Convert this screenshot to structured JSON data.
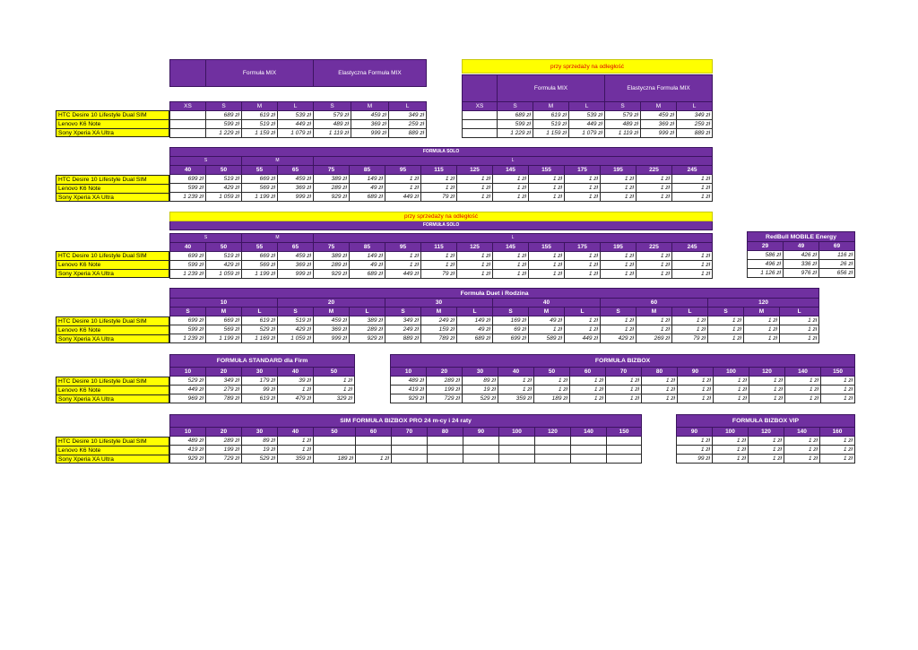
{
  "products": [
    "HTC Desire 10 Lifestyle Dual SIM",
    "Lenovo K6 Note",
    "Sony Xperia XA Ultra"
  ],
  "remote_label": "przy sprzedaży na odległość",
  "mix_block": {
    "group1": "Formuła MIX",
    "group2": "Elastyczna Formuła MIX",
    "sizes": [
      "XS",
      "S",
      "M",
      "L",
      "S",
      "M",
      "L"
    ],
    "rows": [
      [
        "",
        "689 zł",
        "619 zł",
        "539 zł",
        "579 zł",
        "459 zł",
        "349 zł"
      ],
      [
        "",
        "599 zł",
        "519 zł",
        "449 zł",
        "489 zł",
        "369 zł",
        "259 zł"
      ],
      [
        "",
        "1 229 zł",
        "1 159 zł",
        "1 079 zł",
        "1 119 zł",
        "999 zł",
        "889 zł"
      ]
    ]
  },
  "solo_block": {
    "title": "FORMUŁA SOLO",
    "groups": [
      "S",
      "M",
      "L"
    ],
    "cols": [
      "40",
      "50",
      "55",
      "65",
      "75",
      "85",
      "95",
      "115",
      "125",
      "145",
      "155",
      "175",
      "195",
      "225",
      "245"
    ],
    "rows": [
      [
        "699 zł",
        "519 zł",
        "669 zł",
        "459 zł",
        "389 zł",
        "149 zł",
        "1 zł",
        "1 zł",
        "1 zł",
        "1 zł",
        "1 zł",
        "1 zł",
        "1 zł",
        "1 zł",
        "1 zł"
      ],
      [
        "599 zł",
        "429 zł",
        "569 zł",
        "369 zł",
        "289 zł",
        "49 zł",
        "1 zł",
        "1 zł",
        "1 zł",
        "1 zł",
        "1 zł",
        "1 zł",
        "1 zł",
        "1 zł",
        "1 zł"
      ],
      [
        "1 239 zł",
        "1 059 zł",
        "1 199 zł",
        "999 zł",
        "929 zł",
        "689 zł",
        "449 zł",
        "79 zł",
        "1 zł",
        "1 zł",
        "1 zł",
        "1 zł",
        "1 zł",
        "1 zł",
        "1 zł"
      ]
    ]
  },
  "redbull_block": {
    "title": "RedBull MOBILE Energy",
    "cols": [
      "29",
      "49",
      "69"
    ],
    "rows": [
      [
        "586 zł",
        "426 zł",
        "116 zł"
      ],
      [
        "496 zł",
        "336 zł",
        "26 zł"
      ],
      [
        "1 126 zł",
        "976 zł",
        "656 zł"
      ]
    ]
  },
  "duet_block": {
    "title": "Formuła Duet i Rodzina",
    "tiers": [
      "10",
      "20",
      "30",
      "40",
      "60",
      "120"
    ],
    "sizes": [
      "S",
      "M",
      "L",
      "S",
      "M",
      "L",
      "S",
      "M",
      "L",
      "S",
      "M",
      "L",
      "S",
      "M",
      "L",
      "S",
      "M",
      "L"
    ],
    "rows": [
      [
        "699 zł",
        "669 zł",
        "619 zł",
        "519 zł",
        "459 zł",
        "389 zł",
        "349 zł",
        "249 zł",
        "149 zł",
        "169 zł",
        "49 zł",
        "1 zł",
        "1 zł",
        "1 zł",
        "1 zł",
        "1 zł",
        "1 zł",
        "1 zł"
      ],
      [
        "599 zł",
        "569 zł",
        "529 zł",
        "429 zł",
        "369 zł",
        "289 zł",
        "249 zł",
        "159 zł",
        "49 zł",
        "69 zł",
        "1 zł",
        "1 zł",
        "1 zł",
        "1 zł",
        "1 zł",
        "1 zł",
        "1 zł",
        "1 zł"
      ],
      [
        "1 239 zł",
        "1 199 zł",
        "1 169 zł",
        "1 059 zł",
        "999 zł",
        "929 zł",
        "889 zł",
        "789 zł",
        "689 zł",
        "699 zł",
        "589 zł",
        "449 zł",
        "429 zł",
        "269 zł",
        "79 zł",
        "1 zł",
        "1 zł",
        "1 zł"
      ]
    ]
  },
  "standard_block": {
    "title": "FORMUŁA STANDARD dla Firm",
    "cols": [
      "10",
      "20",
      "30",
      "40",
      "50"
    ],
    "rows": [
      [
        "529 zł",
        "349 zł",
        "179 zł",
        "39 zł",
        "1 zł"
      ],
      [
        "449 zł",
        "279 zł",
        "99 zł",
        "1 zł",
        "1 zł"
      ],
      [
        "969 zł",
        "789 zł",
        "619 zł",
        "479 zł",
        "329 zł"
      ]
    ]
  },
  "bizbox_block": {
    "title": "FORMUŁA BIZBOX",
    "cols": [
      "10",
      "20",
      "30",
      "40",
      "50",
      "60",
      "70",
      "80",
      "90",
      "100",
      "120",
      "140",
      "150"
    ],
    "rows": [
      [
        "489 zł",
        "289 zł",
        "89 zł",
        "1 zł",
        "1 zł",
        "1 zł",
        "1 zł",
        "1 zł",
        "1 zł",
        "1 zł",
        "1 zł",
        "1 zł",
        "1 zł"
      ],
      [
        "419 zł",
        "199 zł",
        "19 zł",
        "1 zł",
        "1 zł",
        "1 zł",
        "1 zł",
        "1 zł",
        "1 zł",
        "1 zł",
        "1 zł",
        "1 zł",
        "1 zł"
      ],
      [
        "929 zł",
        "729 zł",
        "529 zł",
        "359 zł",
        "189 zł",
        "1 zł",
        "1 zł",
        "1 zł",
        "1 zł",
        "1 zł",
        "1 zł",
        "1 zł",
        "1 zł"
      ]
    ]
  },
  "bizbox_pro_block": {
    "title": "SIM FORMUŁA BIZBOX PRO 24 m-cy i 24 raty",
    "cols": [
      "10",
      "20",
      "30",
      "40",
      "50",
      "60",
      "70",
      "80",
      "90",
      "100",
      "120",
      "140",
      "150"
    ],
    "rows": [
      [
        "489 zł",
        "289 zł",
        "89 zł",
        "1 zł",
        "",
        "",
        "",
        "",
        "",
        "",
        "",
        "",
        ""
      ],
      [
        "419 zł",
        "199 zł",
        "19 zł",
        "1 zł",
        "",
        "",
        "",
        "",
        "",
        "",
        "",
        "",
        ""
      ],
      [
        "929 zł",
        "729 zł",
        "529 zł",
        "359 zł",
        "189 zł",
        "1 zł",
        "",
        "",
        "",
        "",
        "",
        "",
        ""
      ]
    ]
  },
  "bizbox_vip_block": {
    "title": "FORMUŁA BIZBOX VIP",
    "cols": [
      "90",
      "100",
      "120",
      "140",
      "160"
    ],
    "rows": [
      [
        "1 zł",
        "1 zł",
        "1 zł",
        "1 zł",
        "1 zł"
      ],
      [
        "1 zł",
        "1 zł",
        "1 zł",
        "1 zł",
        "1 zł"
      ],
      [
        "99 zł",
        "1 zł",
        "1 zł",
        "1 zł",
        "1 zł"
      ]
    ]
  },
  "colors": {
    "header_purple": "#7030a0",
    "name_yellow": "#ffff00",
    "remote_red": "#e00000"
  }
}
